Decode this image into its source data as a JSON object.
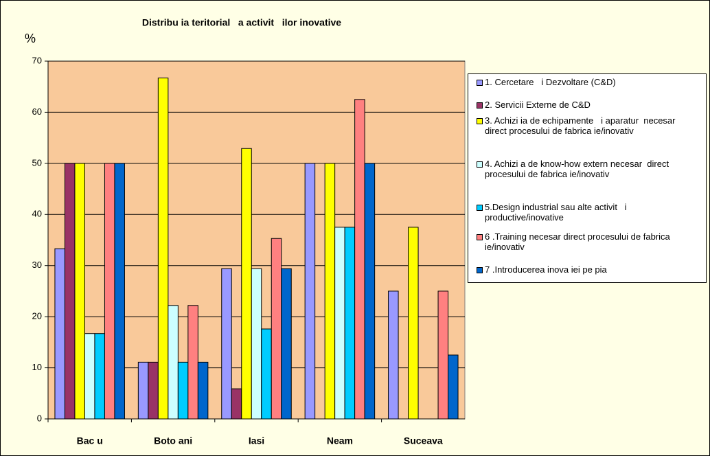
{
  "chart_data": {
    "type": "bar",
    "title": "Distribu ia teritorial   a activit   ilor inovative",
    "y_label": "%",
    "categories": [
      "Bac u",
      "Boto ani",
      "Iasi",
      "Neam",
      "Suceava"
    ],
    "series": [
      {
        "name": "1. Cercetare   i Dezvoltare (C&D)",
        "color": "#9999ff",
        "values": [
          33.3,
          11.1,
          29.4,
          50,
          25
        ]
      },
      {
        "name": "2. Servicii Externe de C&D",
        "color": "#993366",
        "values": [
          50,
          11.1,
          5.9,
          0,
          0
        ]
      },
      {
        "name": "3. Achizi ia de echipamente   i aparatur  necesar   direct procesului de fabrica ie/inovativ",
        "color": "#ffff00",
        "values": [
          50,
          66.7,
          52.9,
          50,
          37.5
        ]
      },
      {
        "name": "4. Achizi a de know-how extern necesar  direct procesului de fabrica ie/inovativ",
        "color": "#ccffff",
        "values": [
          16.7,
          22.2,
          29.4,
          37.5,
          0
        ]
      },
      {
        "name": "5.Design industrial sau alte activit   i productive/inovative",
        "color": "#00ccff",
        "values": [
          16.7,
          11.1,
          17.6,
          37.5,
          0
        ]
      },
      {
        "name": "6 .Training necesar direct procesului de fabrica ie/inovativ",
        "color": "#ff8080",
        "values": [
          50,
          22.2,
          35.3,
          62.5,
          25
        ]
      },
      {
        "name": "7 .Introducerea inova iei pe pia",
        "color": "#0066cc",
        "values": [
          50,
          11.1,
          29.4,
          50,
          12.5
        ]
      }
    ],
    "ylim": [
      0,
      70
    ],
    "yticks": [
      0,
      10,
      20,
      30,
      40,
      50,
      60,
      70
    ],
    "grid": true,
    "plot_color": "#f9c99a",
    "legend": "right"
  }
}
